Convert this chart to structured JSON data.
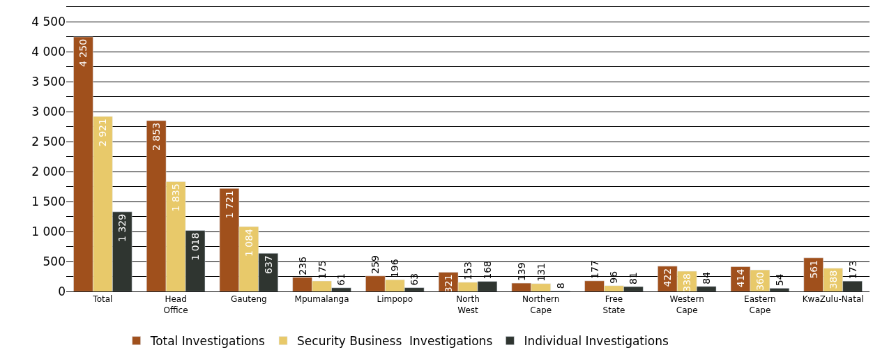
{
  "chart_data": {
    "type": "bar",
    "categories": [
      "Total",
      "Head Office",
      "Gauteng",
      "Mpumalanga",
      "Limpopo",
      "North West",
      "Northern Cape",
      "Free State",
      "Western Cape",
      "Eastern Cape",
      "KwaZulu-Natal"
    ],
    "series": [
      {
        "name": "Total Investigations",
        "color": "#a0501c",
        "values": [
          4250,
          2853,
          1721,
          236,
          259,
          321,
          139,
          177,
          422,
          414,
          561
        ]
      },
      {
        "name": "Security Business  Investigations",
        "color": "#e8c96a",
        "values": [
          2921,
          1835,
          1084,
          175,
          196,
          153,
          131,
          96,
          338,
          360,
          388
        ]
      },
      {
        "name": "Individual Investigations",
        "color": "#2f3530",
        "values": [
          1329,
          1018,
          637,
          61,
          63,
          168,
          8,
          81,
          84,
          54,
          173
        ]
      }
    ],
    "ylim": [
      0,
      4750
    ],
    "yticks": [
      0,
      {
        "value": 250,
        "label": null
      },
      500,
      {
        "value": 750,
        "label": null
      },
      1000,
      {
        "value": 1250,
        "label": null
      },
      1500,
      {
        "value": 1750,
        "label": null
      },
      2000,
      {
        "value": 2250,
        "label": null
      },
      2500,
      {
        "value": 2750,
        "label": null
      },
      3000,
      {
        "value": 3250,
        "label": null
      },
      3500,
      {
        "value": 3750,
        "label": null
      },
      4000,
      {
        "value": 4250,
        "label": null
      },
      4500,
      {
        "value": 4750,
        "label": null
      }
    ],
    "grid": "y",
    "legend": "bottom",
    "data_labels": true
  }
}
